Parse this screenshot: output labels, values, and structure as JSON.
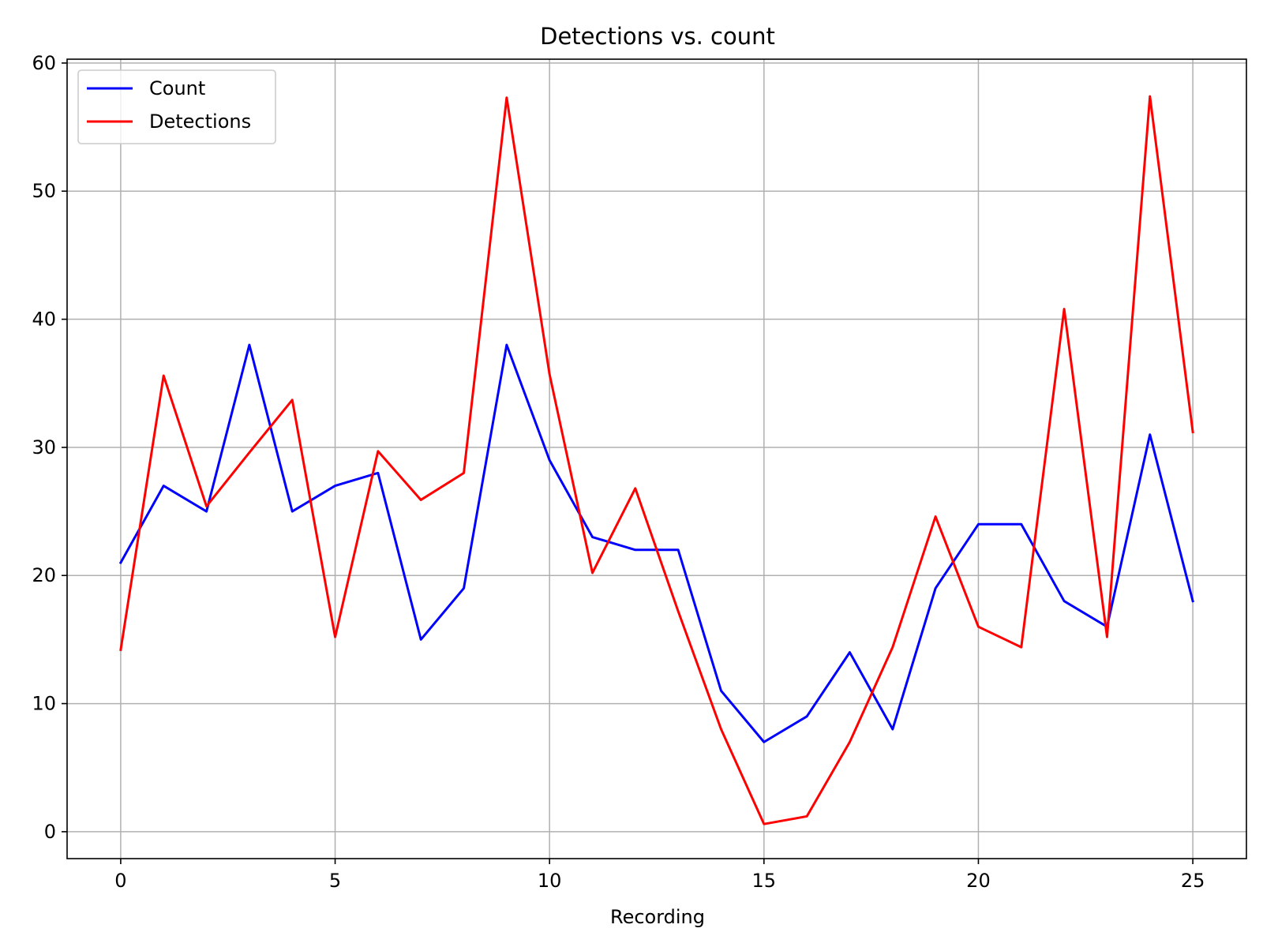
{
  "chart_data": {
    "type": "line",
    "title": "Detections vs. count",
    "xlabel": "Recording",
    "ylabel": "",
    "xlim": [
      -1.25,
      26.25
    ],
    "ylim": [
      -2.1,
      60.3
    ],
    "x_ticks": [
      0,
      5,
      10,
      15,
      20,
      25
    ],
    "y_ticks": [
      0,
      10,
      20,
      30,
      40,
      50,
      60
    ],
    "grid": true,
    "legend_position": "upper-left",
    "x": [
      0,
      1,
      2,
      3,
      4,
      5,
      6,
      7,
      8,
      9,
      10,
      11,
      12,
      13,
      14,
      15,
      16,
      17,
      18,
      19,
      20,
      21,
      22,
      23,
      24,
      25
    ],
    "series": [
      {
        "name": "Count",
        "color": "#0000ff",
        "values": [
          21,
          27,
          25,
          38,
          25,
          27,
          28,
          15,
          19,
          38,
          29,
          23,
          22,
          22,
          11,
          7,
          9,
          14,
          8,
          19,
          24,
          24,
          18,
          16,
          31,
          18
        ]
      },
      {
        "name": "Detections",
        "color": "#ff0000",
        "values": [
          14.2,
          35.6,
          25.4,
          29.6,
          33.7,
          15.2,
          29.7,
          25.9,
          28.0,
          57.3,
          35.7,
          20.2,
          26.8,
          17.2,
          8.0,
          0.6,
          1.2,
          7.0,
          14.4,
          24.6,
          16.0,
          14.4,
          40.8,
          15.2,
          57.4,
          31.2
        ]
      }
    ]
  }
}
